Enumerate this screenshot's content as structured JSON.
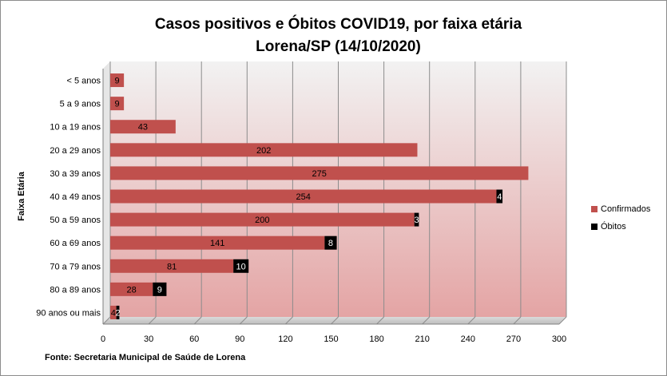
{
  "chart_data": {
    "type": "bar",
    "orientation": "horizontal",
    "stacked": true,
    "title_line1": "Casos positivos e Óbitos COVID19, por faixa etária",
    "title_line2": "Lorena/SP (14/10/2020)",
    "ylabel": "Faixa Etária",
    "xlabel": "",
    "xlim": [
      0,
      300
    ],
    "xticks": [
      0,
      30,
      60,
      90,
      120,
      150,
      180,
      210,
      240,
      270,
      300
    ],
    "grid": true,
    "legend_position": "right",
    "categories": [
      "< 5 anos",
      "5 a 9 anos",
      "10 a 19 anos",
      "20 a 29 anos",
      "30 a 39 anos",
      "40 a 49 anos",
      "50 a 59 anos",
      "60 a 69 anos",
      "70 a 79 anos",
      "80 a 89 anos",
      "90 anos ou mais"
    ],
    "series": [
      {
        "name": "Confirmados",
        "color": "#c0504d",
        "label_color": "#000000",
        "values": [
          9,
          9,
          43,
          202,
          275,
          254,
          200,
          141,
          81,
          28,
          4
        ]
      },
      {
        "name": "Óbitos",
        "color": "#000000",
        "label_color": "#ffffff",
        "values": [
          0,
          0,
          0,
          0,
          0,
          4,
          3,
          8,
          10,
          9,
          2
        ]
      }
    ],
    "source": "Fonte: Secretaria Municipal  de Saúde de Lorena"
  }
}
